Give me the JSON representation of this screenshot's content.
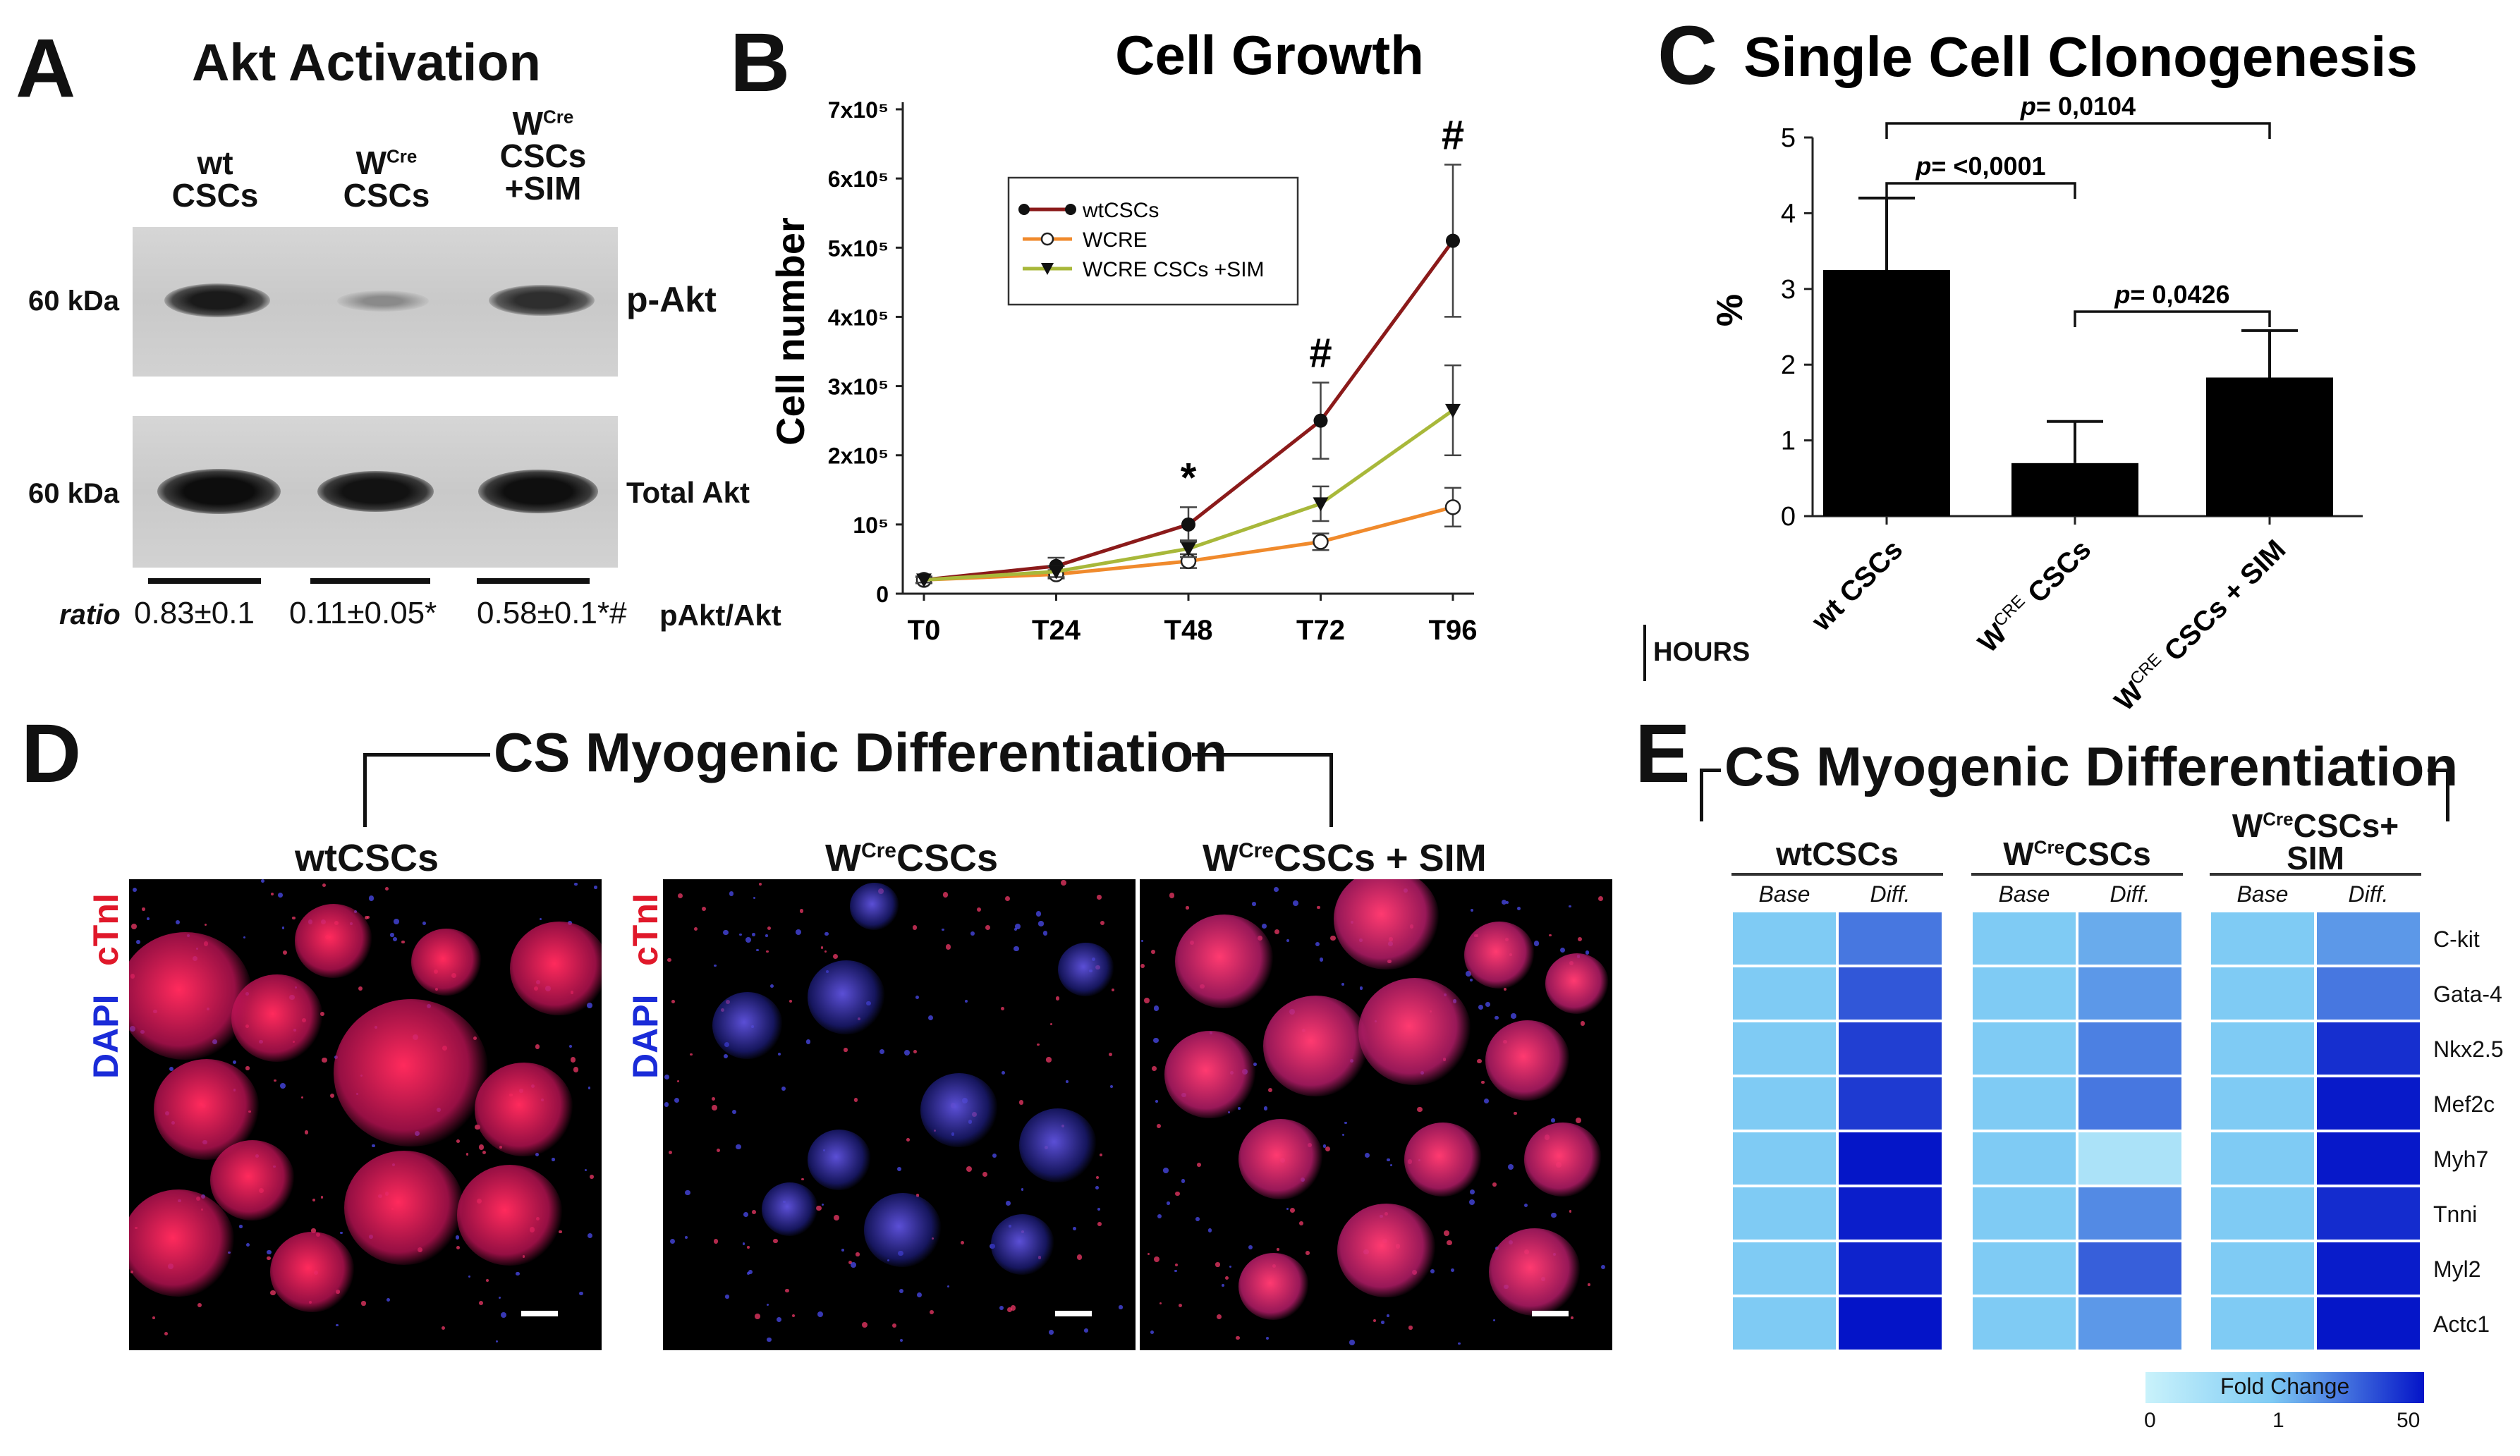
{
  "panels": {
    "A": {
      "letter": "A",
      "title": "Akt Activation",
      "lanes": [
        {
          "line1": "wt",
          "line2": "CSCs",
          "line3": ""
        },
        {
          "line1": "W",
          "sup": "Cre",
          "line2": "CSCs",
          "line3": ""
        },
        {
          "line1": "W",
          "sup": "Cre",
          "line2": "CSCs",
          "line3": "+SIM"
        }
      ],
      "kda_top": "60 kDa",
      "kda_bottom": "60 kDa",
      "band_top": "p-Akt",
      "band_bottom": "Total Akt",
      "ratio_label": "ratio",
      "ratios": [
        "0.83±0.1",
        "0.11±0.05*",
        "0.58±0.1*#"
      ],
      "ratio_unit": "pAkt/Akt",
      "band_intensity_top": [
        0.83,
        0.11,
        0.58
      ],
      "band_intensity_bottom": [
        1,
        1,
        1
      ]
    },
    "B": {
      "letter": "B",
      "annotations": [
        "*",
        "#",
        "#"
      ],
      "hours_label": "HOURS"
    },
    "C": {
      "letter": "C",
      "p_values": [
        "p= 0,0104",
        "p= <0,0001",
        "p= 0,0426"
      ]
    },
    "D": {
      "letter": "D",
      "title": "CS Myogenic Differentiation",
      "images": [
        {
          "label": "wtCSCs"
        },
        {
          "label_main": "W",
          "label_sup": "Cre",
          "label_rest": "CSCs"
        },
        {
          "label_main": "W",
          "label_sup": "Cre",
          "label_rest": "CSCs + SIM"
        }
      ],
      "stain_red": "cTnI",
      "stain_blue": "DAPI"
    },
    "E": {
      "letter": "E",
      "title": "CS Myogenic Differentiation",
      "groups": [
        {
          "label_main": "wtCSCs",
          "label_sup": "",
          "label_rest": "",
          "label_line2": ""
        },
        {
          "label_main": "W",
          "label_sup": "Cre",
          "label_rest": "CSCs",
          "label_line2": ""
        },
        {
          "label_main": "W",
          "label_sup": "Cre",
          "label_rest": "CSCs+",
          "label_line2": "SIM"
        }
      ],
      "col_labels": [
        "Base",
        "Diff."
      ],
      "genes": [
        "C-kit",
        "Gata-4",
        "Nkx2.5",
        "Mef2c",
        "Myh7",
        "Tnni",
        "Myl2",
        "Actc1"
      ],
      "fold_change_diff": [
        [
          6,
          12,
          20,
          22,
          48,
          40,
          36,
          50
        ],
        [
          2,
          3,
          5,
          6,
          0.4,
          4,
          10,
          3
        ],
        [
          3,
          6,
          28,
          44,
          46,
          30,
          42,
          48
        ]
      ],
      "legend_title": "Fold Change",
      "legend_ticks": [
        "0",
        "1",
        "50"
      ],
      "colors": {
        "low": "#c9f2fb",
        "base": "#7fcbf4",
        "high": "#0414c8"
      }
    }
  },
  "chart_data": [
    {
      "type": "line",
      "title": "Cell Growth",
      "xlabel": "",
      "ylabel": "Cell number",
      "categories": [
        "T0",
        "T24",
        "T48",
        "T72",
        "T96"
      ],
      "x_unit_label": "HOURS",
      "ytick_labels": [
        "0",
        "10⁵",
        "2x10⁵",
        "3x10⁵",
        "4x10⁵",
        "5x10⁵",
        "6x10⁵",
        "7x10⁵"
      ],
      "ylim": [
        0,
        700000
      ],
      "series": [
        {
          "name": "wtCSCs",
          "color": "#8b1a1a",
          "marker": "circle-filled",
          "values": [
            20000,
            40000,
            100000,
            250000,
            510000
          ],
          "errors": [
            5000,
            12000,
            25000,
            55000,
            110000
          ]
        },
        {
          "name": "WCRE",
          "color": "#f08a2c",
          "marker": "circle-open",
          "values": [
            20000,
            28000,
            47000,
            75000,
            125000
          ],
          "errors": [
            4000,
            6000,
            10000,
            12000,
            28000
          ]
        },
        {
          "name": "WCRE CSCs +SIM",
          "color": "#a8b83a",
          "marker": "triangle-down",
          "values": [
            20000,
            32000,
            65000,
            130000,
            265000
          ],
          "errors": [
            4000,
            8000,
            12000,
            25000,
            65000
          ]
        }
      ],
      "annotations": [
        {
          "x": "T48",
          "text": "*"
        },
        {
          "x": "T72",
          "text": "#"
        },
        {
          "x": "T96",
          "text": "#"
        }
      ],
      "legend": "top-left"
    },
    {
      "type": "bar",
      "title": "Single Cell Clonogenesis",
      "ylabel": "%",
      "categories": [
        "wt CSCs",
        "WCRE CSCs",
        "WCRE CSCs + SIM"
      ],
      "category_sups": [
        "",
        "CRE",
        "CRE"
      ],
      "values": [
        3.25,
        0.7,
        1.83
      ],
      "errors": [
        0.95,
        0.55,
        0.62
      ],
      "ylim": [
        0,
        5
      ],
      "yticks": [
        "0",
        "1",
        "2",
        "3",
        "4",
        "5"
      ],
      "comparisons": [
        {
          "from": 0,
          "to": 2,
          "label": "p= 0,0104"
        },
        {
          "from": 0,
          "to": 1,
          "label": "p= <0,0001"
        },
        {
          "from": 1,
          "to": 2,
          "label": "p= 0,0426"
        }
      ]
    }
  ]
}
